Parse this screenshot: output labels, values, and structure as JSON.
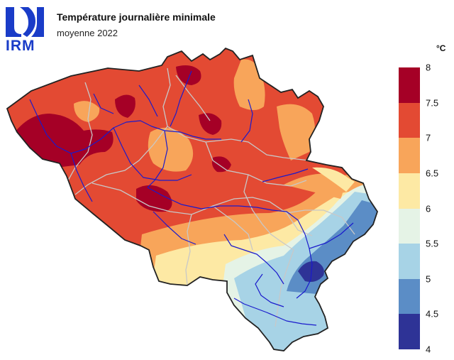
{
  "header": {
    "logo_text": "IRM",
    "title": "Température journalière minimale",
    "subtitle": "moyenne 2022"
  },
  "legend": {
    "unit": "°C",
    "labels": [
      "8",
      "7.5",
      "7",
      "6.5",
      "6",
      "5.5",
      "5",
      "4.5",
      "4"
    ],
    "classes": [
      {
        "range": "7.5 – 8",
        "color": "#a50026"
      },
      {
        "range": "7 – 7.5",
        "color": "#e34a33"
      },
      {
        "range": "6.5 – 7",
        "color": "#f8a55a"
      },
      {
        "range": "6 – 6.5",
        "color": "#fde9a4"
      },
      {
        "range": "5.5 – 6",
        "color": "#e5f3e6"
      },
      {
        "range": "5 – 5.5",
        "color": "#a7d3e6"
      },
      {
        "range": "4.5 – 5",
        "color": "#5b8dc6"
      },
      {
        "range": "4 – 4.5",
        "color": "#2e3396"
      }
    ]
  },
  "colors": {
    "river": "#1a1acc",
    "province_border": "#c8c8c8",
    "country_border": "#222222",
    "logo": "#1a3cc8"
  }
}
